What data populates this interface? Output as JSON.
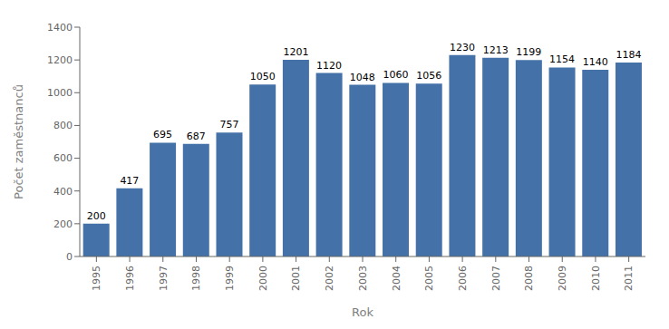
{
  "chart_data": {
    "type": "bar",
    "categories": [
      "1995",
      "1996",
      "1997",
      "1998",
      "1999",
      "2000",
      "2001",
      "2002",
      "2003",
      "2004",
      "2005",
      "2006",
      "2007",
      "2008",
      "2009",
      "2010",
      "2011"
    ],
    "values": [
      200,
      417,
      695,
      687,
      757,
      1050,
      1201,
      1120,
      1048,
      1060,
      1056,
      1230,
      1213,
      1199,
      1154,
      1140,
      1184
    ],
    "color": "#4472a8",
    "xlabel": "Rok",
    "ylabel": "Počet zaměstnanců",
    "ylim": [
      0,
      1400
    ],
    "yticks": [
      0,
      200,
      400,
      600,
      800,
      1000,
      1200,
      1400
    ],
    "data_labels": true,
    "grid": false
  }
}
